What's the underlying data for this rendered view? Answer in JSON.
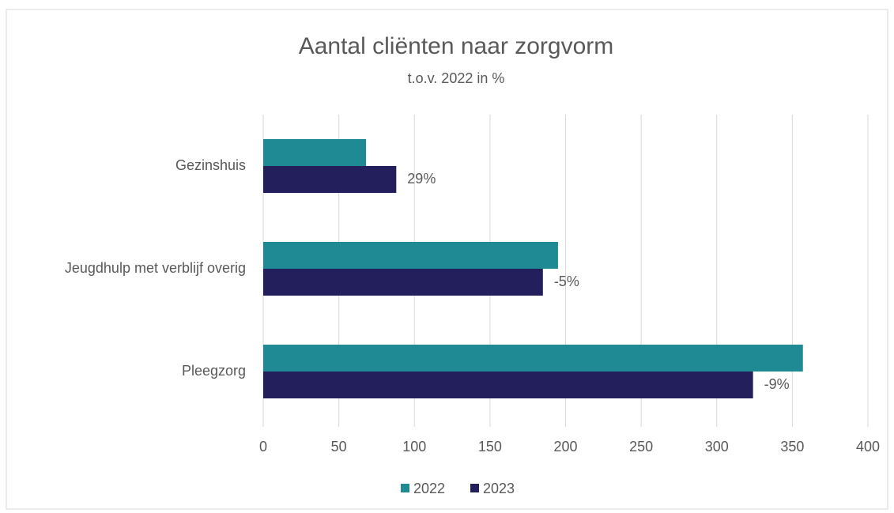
{
  "chart_data": {
    "type": "hbar",
    "title": "Aantal cliënten naar zorgvorm",
    "subtitle": "t.o.v. 2022 in %",
    "categories": [
      "Gezinshuis",
      "Jeugdhulp met verblijf overig",
      "Pleegzorg"
    ],
    "series": [
      {
        "name": "2022",
        "color": "#1f8a94",
        "values": [
          68,
          195,
          357
        ]
      },
      {
        "name": "2023",
        "color": "#231f5c",
        "values": [
          88,
          185,
          324
        ]
      }
    ],
    "change_labels": [
      "29%",
      "-5%",
      "-9%"
    ],
    "xlim": [
      0,
      400
    ],
    "xticks": [
      0,
      50,
      100,
      150,
      200,
      250,
      300,
      350,
      400
    ],
    "grid": true,
    "legend": "bottom"
  }
}
